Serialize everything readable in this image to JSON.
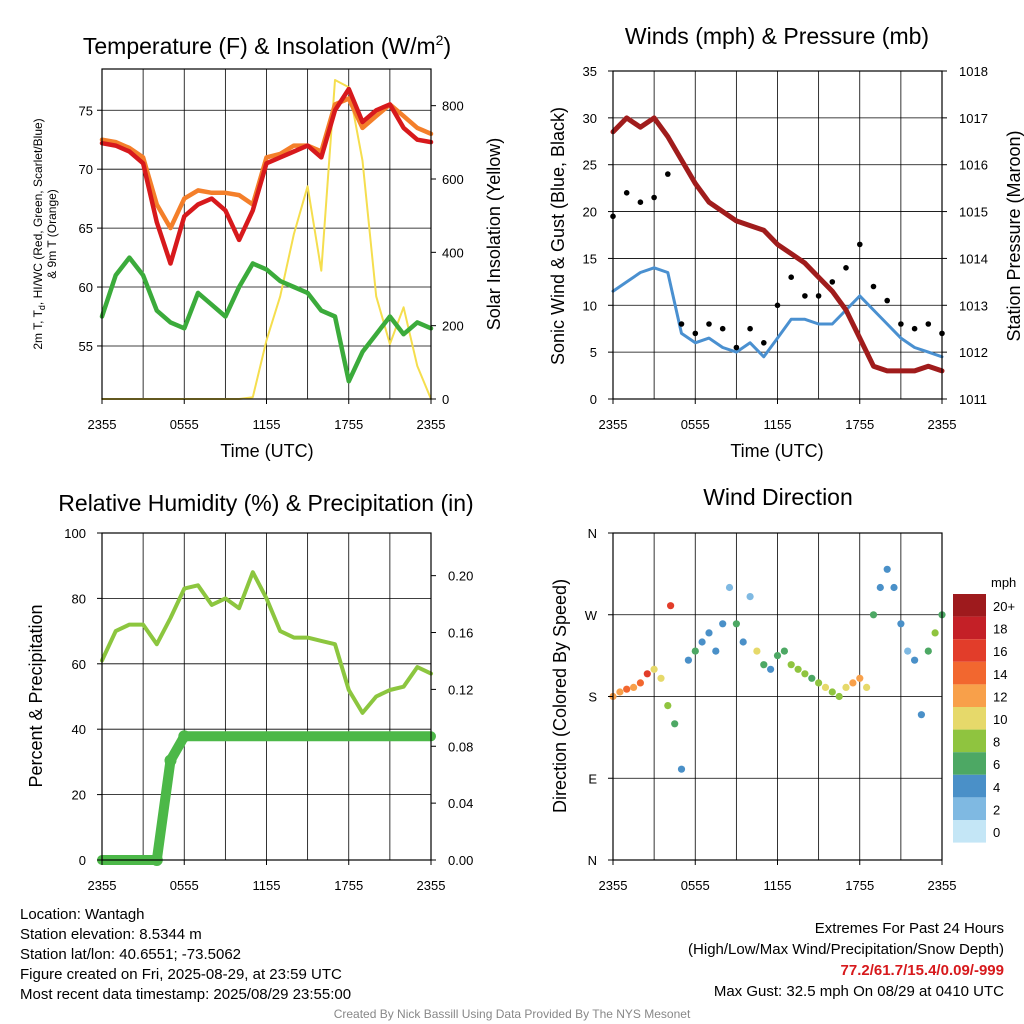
{
  "colors": {
    "red": "#d7191c",
    "orange": "#f47f2a",
    "green": "#3bab3b",
    "yellow": "#f5de4e",
    "blue": "#4a90d0",
    "black": "#000000",
    "maroon": "#a01c1c",
    "rh": "#8cc63f",
    "precip": "#4cb848"
  },
  "chart_data": [
    {
      "id": "temperature",
      "type": "line",
      "title": "Temperature (F) & Insolation (W/m",
      "title_sup": "2",
      "title_end": ")",
      "xlabel": "Time (UTC)",
      "ylabel_line1": "2m T, T",
      "ylabel_sub": "d",
      "ylabel_line1_end": ", HI/WC (Red, Green, Scarlet/Blue)",
      "ylabel_line2": "& 9m T (Orange)",
      "y2label": "Solar Insolation (Yellow)",
      "xticks": [
        "2355",
        "0555",
        "1155",
        "1755",
        "2355"
      ],
      "ylim": [
        50.5,
        78.5
      ],
      "yticks": [
        "55",
        "60",
        "65",
        "70",
        "75"
      ],
      "y2lim": [
        0,
        900
      ],
      "y2ticks": [
        "0",
        "200",
        "400",
        "600",
        "800"
      ],
      "x_hours": [
        0,
        1,
        2,
        3,
        4,
        5,
        6,
        7,
        8,
        9,
        10,
        11,
        12,
        13,
        14,
        15,
        16,
        17,
        18,
        19,
        20,
        21,
        22,
        23,
        24
      ],
      "series": [
        {
          "color_key": "orange",
          "values": [
            72.5,
            72.3,
            71.8,
            71.0,
            67.0,
            65.0,
            67.5,
            68.2,
            68.0,
            68.0,
            67.8,
            67.0,
            71.0,
            71.3,
            72.0,
            72.0,
            71.5,
            75.5,
            76.0,
            73.5,
            74.5,
            75.5,
            74.5,
            73.5,
            73.0
          ]
        },
        {
          "color_key": "red",
          "values": [
            72.2,
            72.0,
            71.5,
            70.5,
            65.5,
            62.0,
            66.0,
            67.0,
            67.5,
            66.5,
            64.0,
            66.5,
            70.5,
            71.0,
            71.5,
            72.0,
            71.0,
            75.0,
            76.8,
            74.0,
            75.0,
            75.5,
            73.5,
            72.5,
            72.3
          ]
        },
        {
          "color_key": "green",
          "values": [
            57.5,
            61.0,
            62.5,
            61.0,
            58.0,
            57.0,
            56.5,
            59.5,
            58.5,
            57.5,
            60.0,
            62.0,
            61.5,
            60.5,
            60.0,
            59.5,
            58.0,
            57.5,
            52.0,
            54.5,
            56.0,
            57.5,
            56.0,
            57.0,
            56.5
          ]
        }
      ],
      "insolation": [
        0,
        0,
        0,
        0,
        0,
        0,
        0,
        0,
        0,
        0,
        0,
        5,
        160,
        280,
        450,
        580,
        350,
        870,
        850,
        650,
        280,
        150,
        250,
        90,
        0
      ]
    },
    {
      "id": "winds",
      "type": "line",
      "title": "Winds (mph) & Pressure (mb)",
      "xlabel": "Time (UTC)",
      "ylabel": "Sonic Wind & Gust (Blue, Black)",
      "y2label": "Station Pressure (Maroon)",
      "xticks": [
        "2355",
        "0555",
        "1155",
        "1755",
        "2355"
      ],
      "ylim": [
        0,
        35
      ],
      "yticks": [
        "0",
        "5",
        "10",
        "15",
        "20",
        "25",
        "30",
        "35"
      ],
      "y2lim": [
        1011,
        1018
      ],
      "y2ticks": [
        "1011",
        "1012",
        "1013",
        "1014",
        "1015",
        "1016",
        "1017",
        "1018"
      ],
      "x_hours": [
        0,
        1,
        2,
        3,
        4,
        5,
        6,
        7,
        8,
        9,
        10,
        11,
        12,
        13,
        14,
        15,
        16,
        17,
        18,
        19,
        20,
        21,
        22,
        23,
        24
      ],
      "wind": [
        11.5,
        12.5,
        13.5,
        14.0,
        13.5,
        7.0,
        6.0,
        6.5,
        5.5,
        5.0,
        6.0,
        4.5,
        6.5,
        8.5,
        8.5,
        8.0,
        8.0,
        9.5,
        11.0,
        9.5,
        8.0,
        6.5,
        5.5,
        5.0,
        4.5
      ],
      "gust": [
        19.5,
        22.0,
        21.0,
        21.5,
        24.0,
        8.0,
        7.0,
        8.0,
        7.5,
        5.5,
        7.5,
        6.0,
        10.0,
        13.0,
        11.0,
        11.0,
        12.5,
        14.0,
        16.5,
        12.0,
        10.5,
        8.0,
        7.5,
        8.0,
        7.0
      ],
      "pressure": [
        1016.7,
        1017.0,
        1016.8,
        1017.0,
        1016.6,
        1016.1,
        1015.6,
        1015.2,
        1015.0,
        1014.8,
        1014.7,
        1014.6,
        1014.3,
        1014.1,
        1013.9,
        1013.6,
        1013.3,
        1012.9,
        1012.3,
        1011.7,
        1011.6,
        1011.6,
        1011.6,
        1011.7,
        1011.6
      ]
    },
    {
      "id": "humidity",
      "type": "line",
      "title": "Relative Humidity (%) & Precipitation (in)",
      "ylabel": "Percent & Precipitation",
      "xticks": [
        "2355",
        "0555",
        "1155",
        "1755",
        "2355"
      ],
      "ylim": [
        0,
        100
      ],
      "yticks": [
        "0",
        "20",
        "40",
        "60",
        "80",
        "100"
      ],
      "y2lim": [
        0,
        0.23
      ],
      "y2ticks": [
        "0.00",
        "0.04",
        "0.08",
        "0.12",
        "0.16",
        "0.20"
      ],
      "x_hours": [
        0,
        1,
        2,
        3,
        4,
        5,
        6,
        7,
        8,
        9,
        10,
        11,
        12,
        13,
        14,
        15,
        16,
        17,
        18,
        19,
        20,
        21,
        22,
        23,
        24
      ],
      "rh": [
        61,
        70,
        72,
        72,
        66,
        74,
        83,
        84,
        78,
        80,
        77,
        88,
        80,
        70,
        68,
        68,
        67,
        66,
        52,
        45,
        50,
        52,
        53,
        59,
        57
      ],
      "precip": [
        0,
        0,
        0,
        0,
        0,
        0.07,
        0.087,
        0.087,
        0.087,
        0.087,
        0.087,
        0.087,
        0.087,
        0.087,
        0.087,
        0.087,
        0.087,
        0.087,
        0.087,
        0.087,
        0.087,
        0.087,
        0.087,
        0.087,
        0.087
      ]
    },
    {
      "id": "direction",
      "type": "scatter",
      "title": "Wind Direction",
      "ylabel": "Direction (Colored By Speed)",
      "xticks": [
        "2355",
        "0555",
        "1155",
        "1755",
        "2355"
      ],
      "yticks": [
        "E",
        "S",
        "W",
        "N"
      ],
      "ytick_top": "N",
      "ylim": [
        0,
        360
      ],
      "legend_title": "mph",
      "legend_labels": [
        "20+",
        "18",
        "16",
        "14",
        "12",
        "10",
        "8",
        "6",
        "4",
        "2",
        "0"
      ],
      "legend_colors": [
        "#9e1a1d",
        "#c42027",
        "#e23d2a",
        "#f2672f",
        "#f8a04a",
        "#e6d96a",
        "#8fc43f",
        "#4da864",
        "#4a90c8",
        "#7fb9e2",
        "#c4e6f6"
      ],
      "x_hours": [
        0,
        0.5,
        1,
        1.5,
        2,
        2.5,
        3,
        3.5,
        4,
        4.2,
        4.5,
        5,
        5.5,
        6,
        6.5,
        7,
        7.5,
        8,
        8.5,
        9,
        9.5,
        10,
        10.5,
        11,
        11.5,
        12,
        12.5,
        13,
        13.5,
        14,
        14.5,
        15,
        15.5,
        16,
        16.5,
        17,
        17.5,
        18,
        18.5,
        19,
        19.5,
        20,
        20.5,
        21,
        21.5,
        22,
        22.5,
        23,
        23.5,
        24
      ],
      "dir_deg": [
        180,
        185,
        188,
        190,
        195,
        205,
        210,
        200,
        170,
        280,
        150,
        100,
        220,
        230,
        240,
        250,
        230,
        260,
        300,
        260,
        240,
        290,
        230,
        215,
        210,
        225,
        230,
        215,
        210,
        205,
        200,
        195,
        190,
        185,
        180,
        190,
        195,
        200,
        190,
        270,
        300,
        320,
        300,
        260,
        230,
        220,
        160,
        230,
        250,
        270
      ],
      "speed": [
        12,
        11,
        13,
        12,
        14,
        15,
        10,
        9,
        8,
        16,
        6,
        4,
        4,
        5,
        4,
        3,
        4,
        4,
        2,
        5,
        3,
        2,
        9,
        6,
        4,
        5,
        6,
        7,
        8,
        7,
        6,
        8,
        9,
        7,
        8,
        10,
        12,
        11,
        10,
        6,
        4,
        3,
        4,
        3,
        2,
        4,
        3,
        6,
        7,
        5
      ]
    }
  ],
  "footer": {
    "location": "Location: Wantagh",
    "elevation": "Station elevation: 8.5344 m",
    "latlon": "Station lat/lon: 40.6551; -73.5062",
    "created": "Figure created on Fri, 2025-08-29, at 23:59 UTC",
    "recent": "Most recent data timestamp: 2025/08/29 23:55:00",
    "extremes_title": "Extremes For Past 24 Hours",
    "extremes_sub": "(High/Low/Max Wind/Precipitation/Snow Depth)",
    "extremes_values": "77.2/61.7/15.4/0.09/-999",
    "max_gust": "Max Gust: 32.5 mph On 08/29 at 0410 UTC",
    "credit": "Created By Nick Bassill Using Data Provided By The NYS Mesonet"
  }
}
